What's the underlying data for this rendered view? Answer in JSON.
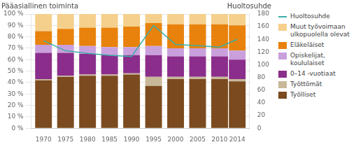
{
  "chart_data": {
    "type": "bar",
    "stacked": true,
    "ylabel": "Pääasiallinen toiminta",
    "y2label": "Huoltosuhde",
    "x": [
      1970,
      1975,
      1980,
      1985,
      1990,
      1995,
      2000,
      2005,
      2010,
      2014
    ],
    "xlim": [
      1967.2,
      2016.8
    ],
    "xticks": [
      1970,
      1975,
      1980,
      1985,
      1990,
      1995,
      2000,
      2005,
      2010,
      2014
    ],
    "ylim": [
      0,
      100
    ],
    "yticks": [
      {
        "value": 0,
        "label": "0 %"
      },
      {
        "value": 10,
        "label": "10 %"
      },
      {
        "value": 20,
        "label": "20 %"
      },
      {
        "value": 30,
        "label": "30 %"
      },
      {
        "value": 40,
        "label": "40 %"
      },
      {
        "value": 50,
        "label": "50 %"
      },
      {
        "value": 60,
        "label": "60 %"
      },
      {
        "value": 70,
        "label": "70 %"
      },
      {
        "value": 80,
        "label": "80 %"
      },
      {
        "value": 90,
        "label": "90 %"
      },
      {
        "value": 100,
        "label": "100 %"
      }
    ],
    "y2lim": [
      0,
      180
    ],
    "y2ticks": [
      0,
      20,
      40,
      60,
      80,
      100,
      120,
      140,
      160,
      180
    ],
    "grid": true,
    "legend": "right",
    "series": [
      {
        "name": "Työlliset",
        "color": "#7B4A1E",
        "values": [
          42,
          45,
          46,
          46,
          47,
          37,
          43,
          43,
          43,
          41
        ]
      },
      {
        "name": "Työttömät",
        "color": "#C8B89A",
        "values": [
          1,
          1,
          1,
          1,
          1,
          8,
          2,
          2,
          2,
          2
        ]
      },
      {
        "name": "0–14 -vuotiaat",
        "color": "#8B2D8B",
        "values": [
          23,
          20,
          18,
          17,
          16,
          19,
          18,
          18,
          18,
          17
        ]
      },
      {
        "name": "Opiskelijat,\nkoululaiset",
        "color": "#C9A0DC",
        "values": [
          7,
          7,
          7,
          7,
          7,
          8,
          7,
          7,
          7,
          8
        ]
      },
      {
        "name": "Eläkeläiset",
        "color": "#E8820C",
        "values": [
          12,
          14,
          16,
          17,
          18,
          20,
          21,
          21,
          21,
          22
        ]
      },
      {
        "name": "Muut työvoimaan\nulkopuolella olevat",
        "color": "#F5D08C",
        "values": [
          15,
          13,
          12,
          12,
          11,
          8,
          9,
          9,
          9,
          10
        ]
      },
      {
        "name": "Huoltosuhde",
        "type": "line",
        "axis": "y2",
        "color": "#3AADA8",
        "values": [
          138,
          122,
          118,
          115,
          113,
          162,
          132,
          130,
          128,
          140
        ]
      }
    ]
  }
}
